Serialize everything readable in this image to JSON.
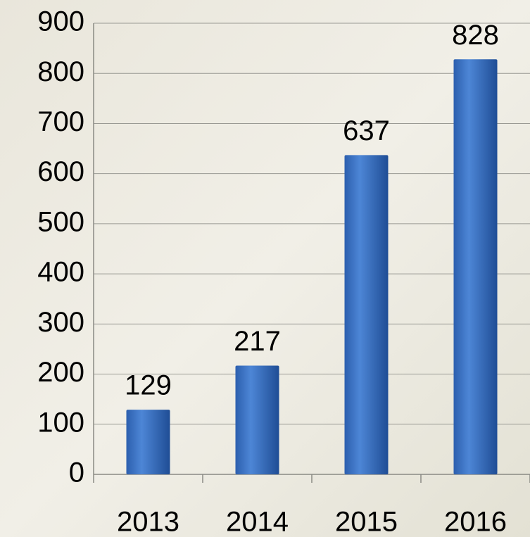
{
  "chart_data": {
    "type": "bar",
    "categories": [
      "2013",
      "2014",
      "2015",
      "2016"
    ],
    "values": [
      129,
      217,
      637,
      828
    ],
    "color": "#3a72c4",
    "ylim": [
      0,
      900
    ],
    "yticks": [
      0,
      100,
      200,
      300,
      400,
      500,
      600,
      700,
      800,
      900
    ],
    "grid": true
  }
}
